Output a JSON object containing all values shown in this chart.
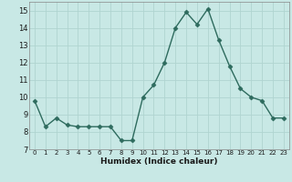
{
  "x": [
    0,
    1,
    2,
    3,
    4,
    5,
    6,
    7,
    8,
    9,
    10,
    11,
    12,
    13,
    14,
    15,
    16,
    17,
    18,
    19,
    20,
    21,
    22,
    23
  ],
  "y": [
    9.8,
    8.3,
    8.8,
    8.4,
    8.3,
    8.3,
    8.3,
    8.3,
    7.5,
    7.5,
    10.0,
    10.7,
    12.0,
    14.0,
    14.9,
    14.2,
    15.1,
    13.3,
    11.8,
    10.5,
    10.0,
    9.8,
    8.8,
    8.8
  ],
  "title": "",
  "xlabel": "Humidex (Indice chaleur)",
  "ylabel": "",
  "xlim": [
    -0.5,
    23.5
  ],
  "ylim": [
    7,
    15.5
  ],
  "yticks": [
    7,
    8,
    9,
    10,
    11,
    12,
    13,
    14,
    15
  ],
  "xticks": [
    0,
    1,
    2,
    3,
    4,
    5,
    6,
    7,
    8,
    9,
    10,
    11,
    12,
    13,
    14,
    15,
    16,
    17,
    18,
    19,
    20,
    21,
    22,
    23
  ],
  "line_color": "#2e6b5e",
  "bg_color": "#c8e8e5",
  "grid_color": "#b0d4d0",
  "marker": "D",
  "markersize": 2.5,
  "linewidth": 1.0
}
